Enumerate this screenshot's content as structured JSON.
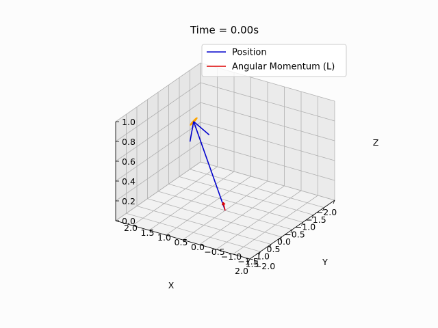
{
  "chart_data": {
    "type": "line",
    "projection": "3d",
    "title": "Time = 0.00s",
    "xlabel": "X",
    "ylabel": "Y",
    "zlabel": "Z",
    "xlim": [
      -2.0,
      2.0
    ],
    "ylim": [
      -2.0,
      2.0
    ],
    "zlim": [
      0.0,
      1.0
    ],
    "xticks": [
      "−2.0",
      "−1.5",
      "−1.0",
      "−0.5",
      "0.0",
      "0.5",
      "1.0",
      "1.5",
      "2.0"
    ],
    "yticks": [
      "−2.0",
      "−1.5",
      "−1.0",
      "−0.5",
      "0.0",
      "0.5",
      "1.0",
      "1.5",
      "2.0"
    ],
    "zticks": [
      "0.0",
      "0.2",
      "0.4",
      "0.6",
      "0.8",
      "1.0"
    ],
    "grid": true,
    "legend_position": "top-center",
    "series": [
      {
        "name": "Position",
        "color": "#0000cc",
        "kind": "arrow",
        "origin": [
          0.0,
          0.0,
          0.0
        ],
        "vector": [
          0.3,
          0.75,
          0.87
        ]
      },
      {
        "name": "Angular Momentum (L)",
        "color": "#dd0000",
        "kind": "arrow",
        "origin": [
          0.0,
          0.0,
          0.0
        ],
        "vector": [
          0.02,
          0.05,
          0.08
        ]
      },
      {
        "name": "",
        "color": "#ffa500",
        "kind": "trajectory",
        "center": [
          0.3,
          0.75,
          0.87
        ],
        "radius": 0.08
      }
    ]
  }
}
